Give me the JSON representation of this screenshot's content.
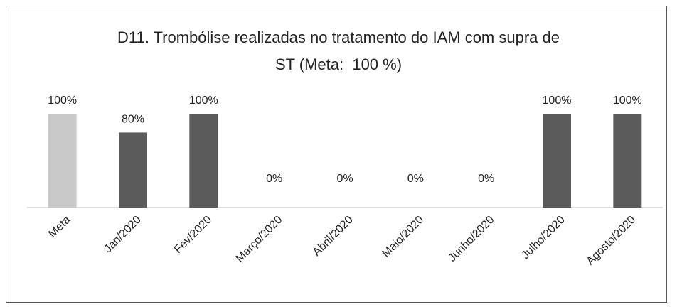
{
  "chart_data": {
    "type": "bar",
    "title": "D11. Trombólise realizadas no tratamento do IAM com supra de\nST (Meta:  100 %)",
    "categories": [
      "Meta",
      "Jan/2020",
      "Fev/2020",
      "Março/2020",
      "Abril/2020",
      "Maio/2020",
      "Junho/2020",
      "Julho/2020",
      "Agosto/2020"
    ],
    "values": [
      100,
      80,
      100,
      0,
      0,
      0,
      0,
      100,
      100
    ],
    "value_labels": [
      "100%",
      "80%",
      "100%",
      "0%",
      "0%",
      "0%",
      "0%",
      "100%",
      "100%"
    ],
    "colors": [
      "#c9c9c9",
      "#5b5b5b",
      "#5b5b5b",
      "#5b5b5b",
      "#5b5b5b",
      "#5b5b5b",
      "#5b5b5b",
      "#5b5b5b",
      "#5b5b5b"
    ],
    "ylim": [
      0,
      100
    ]
  }
}
